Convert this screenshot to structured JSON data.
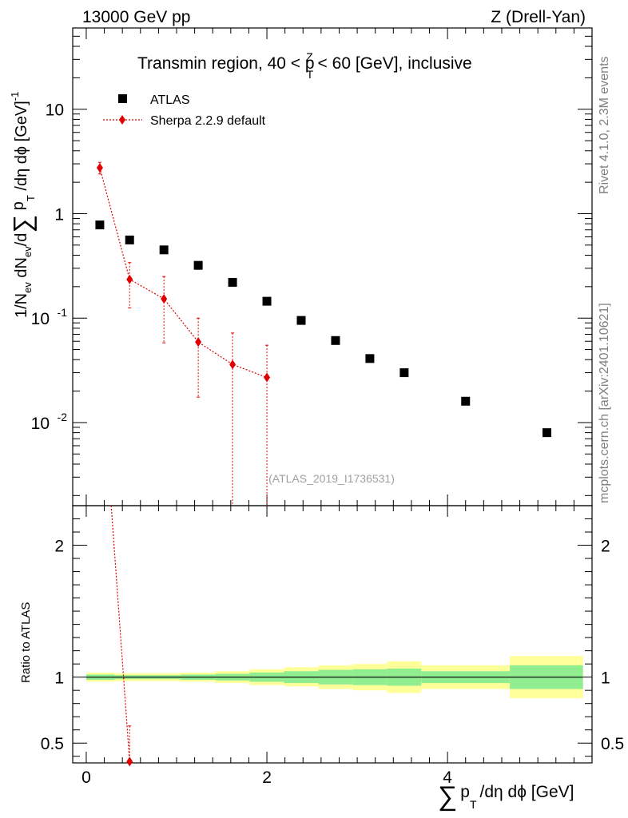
{
  "header": {
    "left": "13000 GeV pp",
    "right": "Z (Drell-Yan)"
  },
  "side_labels": {
    "rivet": "Rivet 4.1.0,  2.3M events",
    "mcplots": "mcplots.cern.ch [arXiv:2401.10621]"
  },
  "chart_data": {
    "type": "scatter",
    "title": "Transmin region, 40 < p_T^Z < 60 [GeV], inclusive",
    "title_parts": {
      "pre": "Transmin region, 40 < p",
      "sup": "Z",
      "sub": "T",
      "post": " < 60 [GeV], inclusive"
    },
    "watermark": "(ATLAS_2019_I1736531)",
    "xlabel": "∑ p_T /dη dϕ [GeV]",
    "xlabel_parts": {
      "sum": "∑",
      "p": "p",
      "sub": "T",
      "rest": "/dη dϕ [GeV]"
    },
    "ylabel": "1/N_ev dN_ev/d∑ p_T /dη dϕ [GeV]^-1",
    "ylabel_parts": {
      "a": "1/N",
      "ev1": "ev",
      "b": " dN",
      "ev2": "ev",
      "c": "/d",
      "sum": "∑",
      "p": " p",
      "sub": "T",
      "d": " /dη dϕ  [GeV]",
      "exp": "-1"
    },
    "xlim": [
      -0.15,
      5.6
    ],
    "ylim": [
      0.0016,
      60
    ],
    "yscale": "log",
    "x_ticks": [
      "0",
      "2",
      "4"
    ],
    "y_ticks": [
      {
        "label": "10",
        "exp": "-2"
      },
      {
        "label": "10",
        "exp": "-1"
      },
      {
        "label": "1",
        "exp": ""
      },
      {
        "label": "10",
        "exp": ""
      }
    ],
    "legend_position": "top-left",
    "series": [
      {
        "name": "ATLAS",
        "marker": "square",
        "color": "#000000",
        "x": [
          0.15,
          0.48,
          0.86,
          1.24,
          1.62,
          2.0,
          2.38,
          2.76,
          3.14,
          3.52,
          4.2,
          5.1
        ],
        "y": [
          0.78,
          0.56,
          0.45,
          0.32,
          0.22,
          0.145,
          0.095,
          0.061,
          0.041,
          0.03,
          0.016,
          0.008
        ]
      },
      {
        "name": "Sherpa 2.2.9 default",
        "marker": "diamond",
        "color": "#e00000",
        "line": "dotted",
        "x": [
          0.15,
          0.48,
          0.86,
          1.24,
          1.62,
          2.0
        ],
        "y": [
          2.75,
          0.235,
          0.153,
          0.059,
          0.036,
          0.027
        ],
        "y_lo": [
          2.4,
          0.125,
          0.058,
          0.0175,
          0.0016,
          0.0016
        ],
        "y_hi": [
          3.1,
          0.34,
          0.25,
          0.1,
          0.072,
          0.055
        ]
      }
    ],
    "ratio": {
      "ylabel": "Ratio to ATLAS",
      "ylim": [
        0.35,
        2.3
      ],
      "y_ticks": [
        "0.5",
        "1",
        "2"
      ],
      "reference": 1.0,
      "bands": {
        "edges": [
          0.0,
          0.31,
          0.67,
          1.05,
          1.43,
          1.81,
          2.19,
          2.57,
          2.95,
          3.33,
          3.71,
          4.69,
          5.5
        ],
        "stat_lo": [
          0.98,
          0.985,
          0.985,
          0.98,
          0.975,
          0.965,
          0.955,
          0.945,
          0.94,
          0.935,
          0.955,
          0.91
        ],
        "stat_hi": [
          1.02,
          1.015,
          1.015,
          1.02,
          1.025,
          1.035,
          1.045,
          1.055,
          1.06,
          1.065,
          1.045,
          1.09
        ],
        "syst_lo": [
          0.965,
          0.97,
          0.97,
          0.965,
          0.955,
          0.94,
          0.93,
          0.91,
          0.9,
          0.88,
          0.91,
          0.84
        ],
        "syst_hi": [
          1.035,
          1.03,
          1.03,
          1.035,
          1.045,
          1.06,
          1.075,
          1.09,
          1.1,
          1.12,
          1.09,
          1.16
        ]
      },
      "mc_x": [
        0.15,
        0.48
      ],
      "mc_y": [
        3.5,
        0.36
      ],
      "mc_err_hi": [
        null,
        0.63
      ],
      "colors": {
        "stat": "#90ee90",
        "syst": "#ffff99"
      }
    }
  }
}
